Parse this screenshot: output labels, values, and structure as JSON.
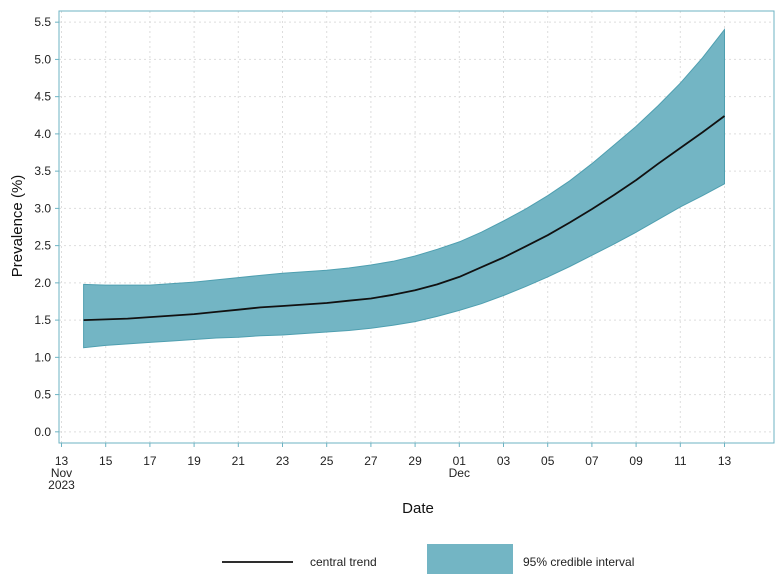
{
  "colors": {
    "band_fill": "#73B5C4",
    "band_edge": "#4F9FB0",
    "line": "#111111",
    "frame": "#6DB3C3",
    "grid": "#DDDDDD",
    "background": "#FFFFFF"
  },
  "chart_data": {
    "type": "area",
    "title": "",
    "xlabel": "Date",
    "ylabel": "Prevalence (%)",
    "xlim": [
      "2023-11-12",
      "2023-12-13"
    ],
    "ylim": [
      -0.15,
      5.65
    ],
    "grid": true,
    "grid_style": "dotted",
    "legend_position": "bottom",
    "x_ticks": [
      {
        "date": "2023-11-13",
        "lines": [
          "13",
          "Nov",
          "2023"
        ]
      },
      {
        "date": "2023-11-15",
        "lines": [
          "15"
        ]
      },
      {
        "date": "2023-11-17",
        "lines": [
          "17"
        ]
      },
      {
        "date": "2023-11-19",
        "lines": [
          "19"
        ]
      },
      {
        "date": "2023-11-21",
        "lines": [
          "21"
        ]
      },
      {
        "date": "2023-11-23",
        "lines": [
          "23"
        ]
      },
      {
        "date": "2023-11-25",
        "lines": [
          "25"
        ]
      },
      {
        "date": "2023-11-27",
        "lines": [
          "27"
        ]
      },
      {
        "date": "2023-11-29",
        "lines": [
          "29"
        ]
      },
      {
        "date": "2023-12-01",
        "lines": [
          "01",
          "Dec"
        ]
      },
      {
        "date": "2023-12-03",
        "lines": [
          "03"
        ]
      },
      {
        "date": "2023-12-05",
        "lines": [
          "05"
        ]
      },
      {
        "date": "2023-12-07",
        "lines": [
          "07"
        ]
      },
      {
        "date": "2023-12-09",
        "lines": [
          "09"
        ]
      },
      {
        "date": "2023-12-11",
        "lines": [
          "11"
        ]
      },
      {
        "date": "2023-12-13",
        "lines": [
          "13"
        ]
      }
    ],
    "y_ticks": [
      {
        "value": 0.0,
        "label": "0.0"
      },
      {
        "value": 0.5,
        "label": "0.5"
      },
      {
        "value": 1.0,
        "label": "1.0"
      },
      {
        "value": 1.5,
        "label": "1.5"
      },
      {
        "value": 2.0,
        "label": "2.0"
      },
      {
        "value": 2.5,
        "label": "2.5"
      },
      {
        "value": 3.0,
        "label": "3.0"
      },
      {
        "value": 3.5,
        "label": "3.5"
      },
      {
        "value": 4.0,
        "label": "4.0"
      },
      {
        "value": 4.5,
        "label": "4.5"
      },
      {
        "value": 5.0,
        "label": "5.0"
      },
      {
        "value": 5.5,
        "label": "5.5"
      }
    ],
    "x": [
      "2023-11-14",
      "2023-11-15",
      "2023-11-16",
      "2023-11-17",
      "2023-11-18",
      "2023-11-19",
      "2023-11-20",
      "2023-11-21",
      "2023-11-22",
      "2023-11-23",
      "2023-11-24",
      "2023-11-25",
      "2023-11-26",
      "2023-11-27",
      "2023-11-28",
      "2023-11-29",
      "2023-11-30",
      "2023-12-01",
      "2023-12-02",
      "2023-12-03",
      "2023-12-04",
      "2023-12-05",
      "2023-12-06",
      "2023-12-07",
      "2023-12-08",
      "2023-12-09",
      "2023-12-10",
      "2023-12-11",
      "2023-12-12",
      "2023-12-13"
    ],
    "series": [
      {
        "name": "central trend",
        "style": "line",
        "values": [
          1.5,
          1.51,
          1.52,
          1.54,
          1.56,
          1.58,
          1.61,
          1.64,
          1.67,
          1.69,
          1.71,
          1.73,
          1.76,
          1.79,
          1.84,
          1.9,
          1.98,
          2.08,
          2.21,
          2.34,
          2.49,
          2.64,
          2.81,
          2.99,
          3.18,
          3.38,
          3.6,
          3.81,
          4.02,
          4.24
        ]
      },
      {
        "name": "95% credible interval",
        "style": "band",
        "lower": [
          1.13,
          1.16,
          1.18,
          1.2,
          1.22,
          1.24,
          1.26,
          1.27,
          1.29,
          1.3,
          1.32,
          1.34,
          1.36,
          1.39,
          1.43,
          1.48,
          1.55,
          1.63,
          1.72,
          1.83,
          1.95,
          2.08,
          2.22,
          2.37,
          2.52,
          2.68,
          2.85,
          3.02,
          3.17,
          3.33
        ],
        "upper": [
          1.98,
          1.97,
          1.97,
          1.97,
          1.99,
          2.01,
          2.04,
          2.07,
          2.1,
          2.13,
          2.15,
          2.17,
          2.2,
          2.24,
          2.29,
          2.36,
          2.45,
          2.55,
          2.68,
          2.83,
          2.99,
          3.17,
          3.37,
          3.6,
          3.85,
          4.1,
          4.38,
          4.68,
          5.02,
          5.4
        ]
      }
    ]
  },
  "legend": {
    "line_label": "central trend",
    "band_label": "95% credible interval"
  }
}
